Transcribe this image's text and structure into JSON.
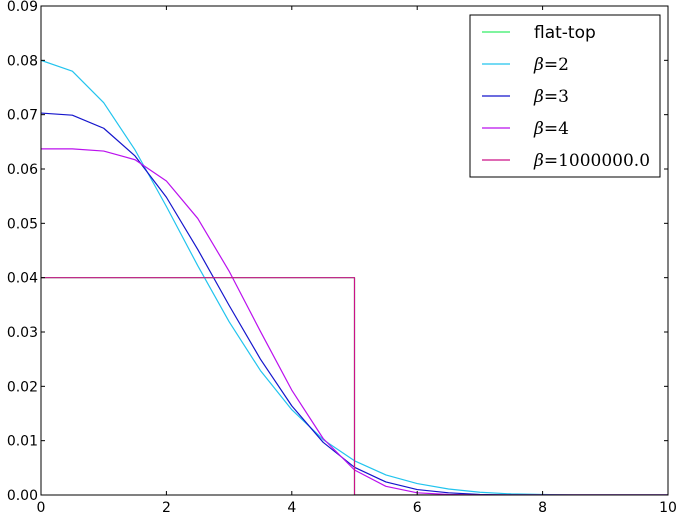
{
  "chart_data": {
    "type": "line",
    "title": "",
    "xlabel": "",
    "ylabel": "",
    "xlim": [
      0,
      10
    ],
    "ylim": [
      0,
      0.09
    ],
    "xticks": [
      0,
      2,
      4,
      6,
      8,
      10
    ],
    "xtick_labels": [
      "0",
      "2",
      "4",
      "6",
      "8",
      "10"
    ],
    "yticks": [
      0,
      0.01,
      0.02,
      0.03,
      0.04,
      0.05,
      0.06,
      0.07,
      0.08,
      0.09
    ],
    "ytick_labels": [
      "0.00",
      "0.01",
      "0.02",
      "0.03",
      "0.04",
      "0.05",
      "0.06",
      "0.07",
      "0.08",
      "0.09"
    ],
    "grid": false,
    "legend_position": "top-right",
    "series": [
      {
        "name": "flat-top",
        "legend_symbol": "",
        "legend_text": "flat-top",
        "color": "#33ee66",
        "x": [
          0,
          5.0,
          5.0,
          10
        ],
        "y": [
          0.04,
          0.04,
          0.0,
          0.0
        ]
      },
      {
        "name": "β=2",
        "legend_symbol": "β",
        "legend_text": "=2",
        "color": "#22c4ee",
        "x": [
          0,
          0.5,
          1.0,
          1.5,
          2.0,
          2.5,
          3.0,
          3.5,
          4.0,
          4.5,
          5.0,
          5.5,
          6.0,
          6.5,
          7.0,
          7.5,
          8.0,
          8.5,
          9.0,
          9.5,
          10.0
        ],
        "y": [
          0.08,
          0.078,
          0.0722,
          0.0635,
          0.0531,
          0.0422,
          0.0319,
          0.0229,
          0.0157,
          0.0102,
          0.0063,
          0.0037,
          0.0021,
          0.0011,
          0.0005,
          0.0002,
          0.0001,
          0.0,
          0.0,
          0.0,
          0.0
        ]
      },
      {
        "name": "β=3",
        "legend_symbol": "β",
        "legend_text": "=3",
        "color": "#1515cc",
        "x": [
          0,
          0.5,
          1.0,
          1.5,
          2.0,
          2.5,
          3.0,
          3.5,
          4.0,
          4.5,
          5.0,
          5.5,
          6.0,
          6.5,
          7.0,
          7.5,
          8.0,
          8.5,
          9.0,
          9.5,
          10.0
        ],
        "y": [
          0.0703,
          0.0699,
          0.0675,
          0.0624,
          0.0548,
          0.0452,
          0.0349,
          0.025,
          0.0164,
          0.0097,
          0.0051,
          0.0024,
          0.001,
          0.0004,
          0.0001,
          0.0,
          0.0,
          0.0,
          0.0,
          0.0,
          0.0
        ]
      },
      {
        "name": "β=4",
        "legend_symbol": "β",
        "legend_text": "=4",
        "color": "#bb11ee",
        "x": [
          0,
          0.5,
          1.0,
          1.5,
          2.0,
          2.5,
          3.0,
          3.5,
          4.0,
          4.5,
          5.0,
          5.5,
          6.0,
          6.5,
          7.0,
          7.5,
          8.0,
          8.5,
          9.0,
          9.5,
          10.0
        ],
        "y": [
          0.0637,
          0.0637,
          0.0633,
          0.0617,
          0.0578,
          0.0509,
          0.0412,
          0.0301,
          0.0193,
          0.0104,
          0.0046,
          0.0016,
          0.0004,
          0.0001,
          0.0,
          0.0,
          0.0,
          0.0,
          0.0,
          0.0,
          0.0
        ]
      },
      {
        "name": "β=1000000.0",
        "legend_symbol": "β",
        "legend_text": "=1000000.0",
        "color": "#cc1188",
        "x": [
          0,
          5.0,
          5.0,
          10
        ],
        "y": [
          0.04,
          0.04,
          0.0,
          0.0
        ]
      }
    ]
  }
}
